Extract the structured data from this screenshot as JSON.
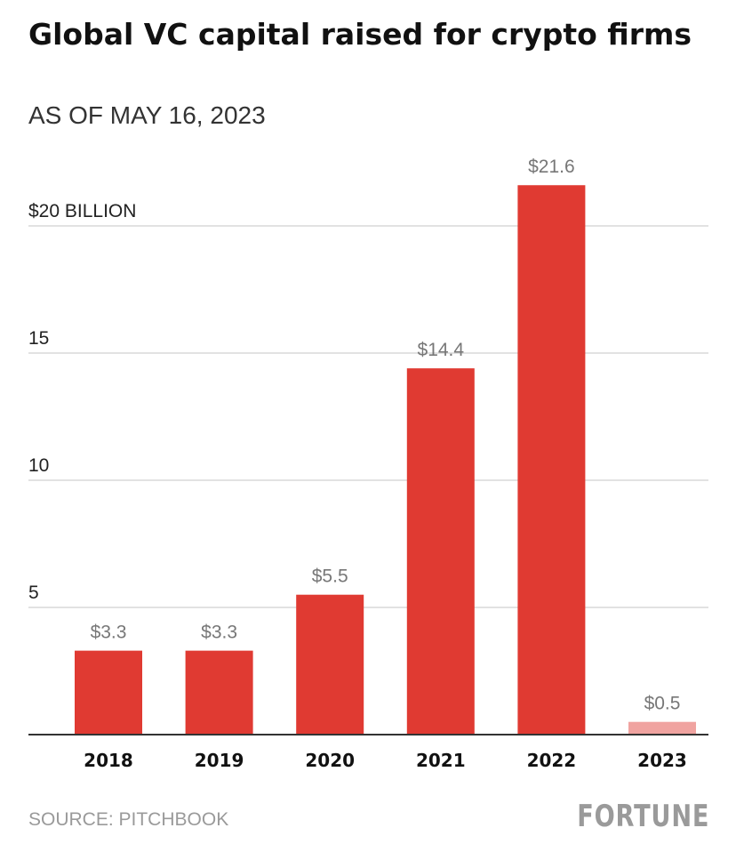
{
  "chart_data": {
    "type": "bar",
    "title": "Global VC capital raised for crypto firms",
    "subtitle": "AS OF MAY 16, 2023",
    "categories": [
      "2018",
      "2019",
      "2020",
      "2021",
      "2022",
      "2023"
    ],
    "values": [
      3.3,
      3.3,
      5.5,
      14.4,
      21.6,
      0.5
    ],
    "data_labels": [
      "$3.3",
      "$3.3",
      "$5.5",
      "$14.4",
      "$21.6",
      "$0.5"
    ],
    "y_ticks": [
      {
        "value": 5,
        "label": "5"
      },
      {
        "value": 10,
        "label": "10"
      },
      {
        "value": 15,
        "label": "15"
      },
      {
        "value": 20,
        "label": "$20 BILLION"
      }
    ],
    "ylim": [
      0,
      23
    ],
    "grid": true,
    "colors": {
      "bar": "#e03a32",
      "bar_partial": "#f0a3a0",
      "grid": "#d9d9d9",
      "axis": "#333333",
      "data_label": "#777777"
    },
    "partial_categories": [
      "2023"
    ]
  },
  "footer": {
    "source": "SOURCE: PITCHBOOK",
    "brand": "FORTUNE"
  }
}
